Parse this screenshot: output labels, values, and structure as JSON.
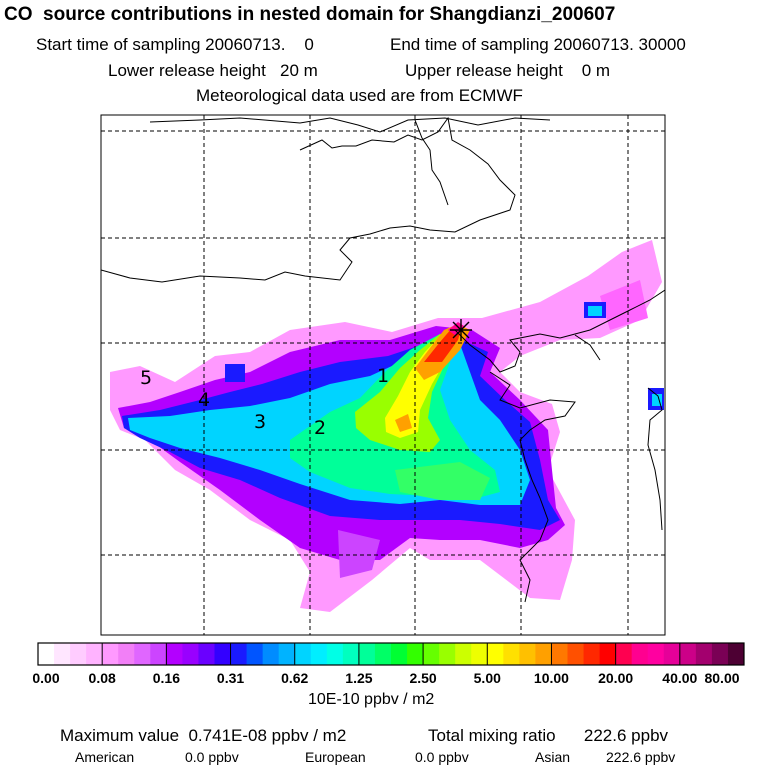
{
  "header": {
    "title": "CO  source contributions in nested domain for Shangdianzi_200607",
    "start_label": "Start time of sampling 20060713.    0",
    "end_label": "End time of sampling 20060713. 30000",
    "lower_release": "Lower release height   20 m",
    "upper_release": "Upper release height    0 m",
    "meteo": "Meteorological data used are from ECMWF"
  },
  "map": {
    "region_labels": [
      "1",
      "2",
      "3",
      "4",
      "5"
    ],
    "receptor_marker": "receptor-star",
    "colors": {
      "coastline": "#000000",
      "grid": "#000000",
      "frame": "#000000"
    }
  },
  "colorbar": {
    "tick_labels": [
      "0.00",
      "0.08",
      "0.16",
      "0.31",
      "0.62",
      "1.25",
      "2.50",
      "5.00",
      "10.00",
      "20.00",
      "40.00",
      "80.00"
    ],
    "colors": [
      "#ffffff",
      "#ffe6ff",
      "#ffccff",
      "#ffb3ff",
      "#ff99ff",
      "#f27ff7",
      "#e066ff",
      "#cc44ff",
      "#b300ff",
      "#9900ff",
      "#6a00ff",
      "#3300ff",
      "#1a1aff",
      "#0055ff",
      "#008cff",
      "#00b3ff",
      "#00d4ff",
      "#00eeff",
      "#00ffe6",
      "#00ffbf",
      "#00ff99",
      "#00ff66",
      "#00ff33",
      "#33ff00",
      "#66ff00",
      "#99ff00",
      "#ccff00",
      "#eeff00",
      "#ffff00",
      "#ffe000",
      "#ffc000",
      "#ffa000",
      "#ff7800",
      "#ff5000",
      "#ff2800",
      "#ff0000",
      "#ff0050",
      "#ff0090",
      "#ff00a0",
      "#e60099",
      "#cc0088",
      "#a3006e",
      "#7a0055",
      "#4d0033"
    ],
    "units": "10E-10 ppbv / m2"
  },
  "footer": {
    "max_value": "Maximum value  0.741E-08 ppbv / m2",
    "total_ratio": "Total mixing ratio      222.6 ppbv",
    "american_label": "American",
    "american_value": "0.0 ppbv",
    "european_label": "European",
    "european_value": "0.0 ppbv",
    "asian_label": "Asian",
    "asian_value": "222.6 ppbv"
  }
}
